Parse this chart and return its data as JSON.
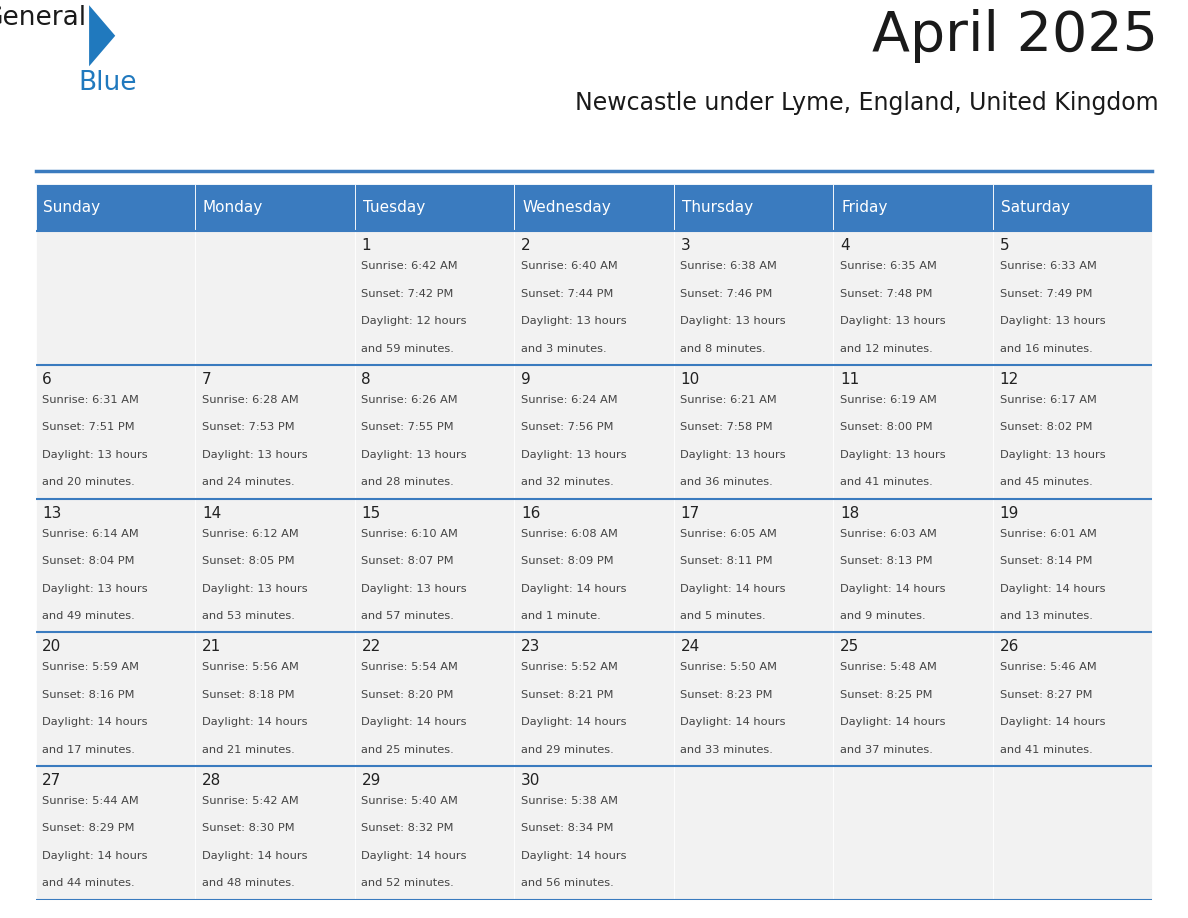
{
  "title": "April 2025",
  "subtitle": "Newcastle under Lyme, England, United Kingdom",
  "header_bg": "#3a7bbf",
  "header_text": "#ffffff",
  "cell_bg_light": "#f2f2f2",
  "cell_bg_white": "#ffffff",
  "grid_line_color": "#3a7bbf",
  "day_names": [
    "Sunday",
    "Monday",
    "Tuesday",
    "Wednesday",
    "Thursday",
    "Friday",
    "Saturday"
  ],
  "days": [
    {
      "date": 1,
      "col": 2,
      "row": 0,
      "sunrise": "6:42 AM",
      "sunset": "7:42 PM",
      "daylight_line1": "Daylight: 12 hours",
      "daylight_line2": "and 59 minutes."
    },
    {
      "date": 2,
      "col": 3,
      "row": 0,
      "sunrise": "6:40 AM",
      "sunset": "7:44 PM",
      "daylight_line1": "Daylight: 13 hours",
      "daylight_line2": "and 3 minutes."
    },
    {
      "date": 3,
      "col": 4,
      "row": 0,
      "sunrise": "6:38 AM",
      "sunset": "7:46 PM",
      "daylight_line1": "Daylight: 13 hours",
      "daylight_line2": "and 8 minutes."
    },
    {
      "date": 4,
      "col": 5,
      "row": 0,
      "sunrise": "6:35 AM",
      "sunset": "7:48 PM",
      "daylight_line1": "Daylight: 13 hours",
      "daylight_line2": "and 12 minutes."
    },
    {
      "date": 5,
      "col": 6,
      "row": 0,
      "sunrise": "6:33 AM",
      "sunset": "7:49 PM",
      "daylight_line1": "Daylight: 13 hours",
      "daylight_line2": "and 16 minutes."
    },
    {
      "date": 6,
      "col": 0,
      "row": 1,
      "sunrise": "6:31 AM",
      "sunset": "7:51 PM",
      "daylight_line1": "Daylight: 13 hours",
      "daylight_line2": "and 20 minutes."
    },
    {
      "date": 7,
      "col": 1,
      "row": 1,
      "sunrise": "6:28 AM",
      "sunset": "7:53 PM",
      "daylight_line1": "Daylight: 13 hours",
      "daylight_line2": "and 24 minutes."
    },
    {
      "date": 8,
      "col": 2,
      "row": 1,
      "sunrise": "6:26 AM",
      "sunset": "7:55 PM",
      "daylight_line1": "Daylight: 13 hours",
      "daylight_line2": "and 28 minutes."
    },
    {
      "date": 9,
      "col": 3,
      "row": 1,
      "sunrise": "6:24 AM",
      "sunset": "7:56 PM",
      "daylight_line1": "Daylight: 13 hours",
      "daylight_line2": "and 32 minutes."
    },
    {
      "date": 10,
      "col": 4,
      "row": 1,
      "sunrise": "6:21 AM",
      "sunset": "7:58 PM",
      "daylight_line1": "Daylight: 13 hours",
      "daylight_line2": "and 36 minutes."
    },
    {
      "date": 11,
      "col": 5,
      "row": 1,
      "sunrise": "6:19 AM",
      "sunset": "8:00 PM",
      "daylight_line1": "Daylight: 13 hours",
      "daylight_line2": "and 41 minutes."
    },
    {
      "date": 12,
      "col": 6,
      "row": 1,
      "sunrise": "6:17 AM",
      "sunset": "8:02 PM",
      "daylight_line1": "Daylight: 13 hours",
      "daylight_line2": "and 45 minutes."
    },
    {
      "date": 13,
      "col": 0,
      "row": 2,
      "sunrise": "6:14 AM",
      "sunset": "8:04 PM",
      "daylight_line1": "Daylight: 13 hours",
      "daylight_line2": "and 49 minutes."
    },
    {
      "date": 14,
      "col": 1,
      "row": 2,
      "sunrise": "6:12 AM",
      "sunset": "8:05 PM",
      "daylight_line1": "Daylight: 13 hours",
      "daylight_line2": "and 53 minutes."
    },
    {
      "date": 15,
      "col": 2,
      "row": 2,
      "sunrise": "6:10 AM",
      "sunset": "8:07 PM",
      "daylight_line1": "Daylight: 13 hours",
      "daylight_line2": "and 57 minutes."
    },
    {
      "date": 16,
      "col": 3,
      "row": 2,
      "sunrise": "6:08 AM",
      "sunset": "8:09 PM",
      "daylight_line1": "Daylight: 14 hours",
      "daylight_line2": "and 1 minute."
    },
    {
      "date": 17,
      "col": 4,
      "row": 2,
      "sunrise": "6:05 AM",
      "sunset": "8:11 PM",
      "daylight_line1": "Daylight: 14 hours",
      "daylight_line2": "and 5 minutes."
    },
    {
      "date": 18,
      "col": 5,
      "row": 2,
      "sunrise": "6:03 AM",
      "sunset": "8:13 PM",
      "daylight_line1": "Daylight: 14 hours",
      "daylight_line2": "and 9 minutes."
    },
    {
      "date": 19,
      "col": 6,
      "row": 2,
      "sunrise": "6:01 AM",
      "sunset": "8:14 PM",
      "daylight_line1": "Daylight: 14 hours",
      "daylight_line2": "and 13 minutes."
    },
    {
      "date": 20,
      "col": 0,
      "row": 3,
      "sunrise": "5:59 AM",
      "sunset": "8:16 PM",
      "daylight_line1": "Daylight: 14 hours",
      "daylight_line2": "and 17 minutes."
    },
    {
      "date": 21,
      "col": 1,
      "row": 3,
      "sunrise": "5:56 AM",
      "sunset": "8:18 PM",
      "daylight_line1": "Daylight: 14 hours",
      "daylight_line2": "and 21 minutes."
    },
    {
      "date": 22,
      "col": 2,
      "row": 3,
      "sunrise": "5:54 AM",
      "sunset": "8:20 PM",
      "daylight_line1": "Daylight: 14 hours",
      "daylight_line2": "and 25 minutes."
    },
    {
      "date": 23,
      "col": 3,
      "row": 3,
      "sunrise": "5:52 AM",
      "sunset": "8:21 PM",
      "daylight_line1": "Daylight: 14 hours",
      "daylight_line2": "and 29 minutes."
    },
    {
      "date": 24,
      "col": 4,
      "row": 3,
      "sunrise": "5:50 AM",
      "sunset": "8:23 PM",
      "daylight_line1": "Daylight: 14 hours",
      "daylight_line2": "and 33 minutes."
    },
    {
      "date": 25,
      "col": 5,
      "row": 3,
      "sunrise": "5:48 AM",
      "sunset": "8:25 PM",
      "daylight_line1": "Daylight: 14 hours",
      "daylight_line2": "and 37 minutes."
    },
    {
      "date": 26,
      "col": 6,
      "row": 3,
      "sunrise": "5:46 AM",
      "sunset": "8:27 PM",
      "daylight_line1": "Daylight: 14 hours",
      "daylight_line2": "and 41 minutes."
    },
    {
      "date": 27,
      "col": 0,
      "row": 4,
      "sunrise": "5:44 AM",
      "sunset": "8:29 PM",
      "daylight_line1": "Daylight: 14 hours",
      "daylight_line2": "and 44 minutes."
    },
    {
      "date": 28,
      "col": 1,
      "row": 4,
      "sunrise": "5:42 AM",
      "sunset": "8:30 PM",
      "daylight_line1": "Daylight: 14 hours",
      "daylight_line2": "and 48 minutes."
    },
    {
      "date": 29,
      "col": 2,
      "row": 4,
      "sunrise": "5:40 AM",
      "sunset": "8:32 PM",
      "daylight_line1": "Daylight: 14 hours",
      "daylight_line2": "and 52 minutes."
    },
    {
      "date": 30,
      "col": 3,
      "row": 4,
      "sunrise": "5:38 AM",
      "sunset": "8:34 PM",
      "daylight_line1": "Daylight: 14 hours",
      "daylight_line2": "and 56 minutes."
    }
  ],
  "logo_color_general": "#1a1a1a",
  "logo_color_blue": "#2079be",
  "logo_triangle_color": "#2079be"
}
